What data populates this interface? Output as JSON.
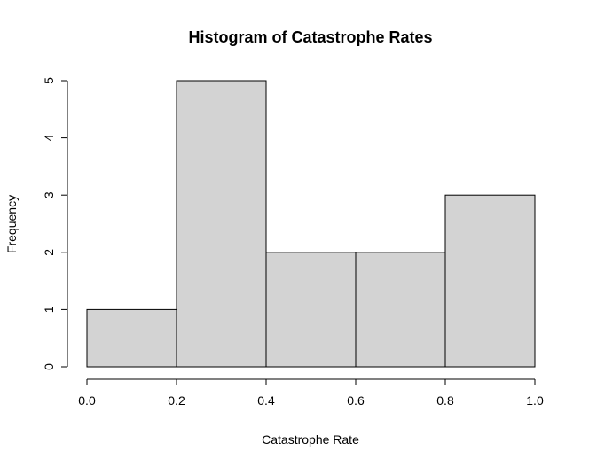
{
  "chart_data": {
    "type": "bar",
    "title": "Histogram of Catastrophe Rates",
    "xlabel": "Catastrophe Rate",
    "ylabel": "Frequency",
    "bins": [
      {
        "start": 0.0,
        "end": 0.2,
        "count": 1
      },
      {
        "start": 0.2,
        "end": 0.4,
        "count": 5
      },
      {
        "start": 0.4,
        "end": 0.6,
        "count": 2
      },
      {
        "start": 0.6,
        "end": 0.8,
        "count": 2
      },
      {
        "start": 0.8,
        "end": 1.0,
        "count": 3
      }
    ],
    "xlim": [
      0.0,
      1.0
    ],
    "ylim": [
      0,
      5
    ],
    "x_ticks": [
      "0.0",
      "0.2",
      "0.4",
      "0.6",
      "0.8",
      "1.0"
    ],
    "y_ticks": [
      "0",
      "1",
      "2",
      "3",
      "4",
      "5"
    ],
    "bar_fill": "#d3d3d3",
    "bar_stroke": "#000000",
    "grid": false,
    "legend": "none"
  }
}
